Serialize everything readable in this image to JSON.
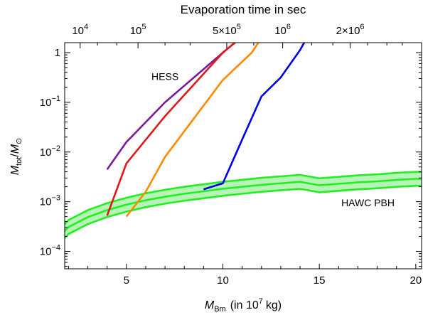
{
  "chart_data": {
    "type": "line",
    "title": "Evaporation time in sec",
    "xlabel": {
      "main": "M",
      "sub": "Bm",
      "text": "(in 10",
      "sup": "7",
      "unit": "kg)"
    },
    "ylabel": {
      "main": "M",
      "sub": "tot",
      "slash": "/",
      "den": "M",
      "den_sub": "⊙"
    },
    "xlim": [
      1.8,
      20.3
    ],
    "ylim_log10": [
      -4.35,
      0.2
    ],
    "y_scale": "log",
    "grid": false,
    "x_ticks": [
      {
        "value": 5,
        "label": "5"
      },
      {
        "value": 10,
        "label": "10"
      },
      {
        "value": 15,
        "label": "15"
      },
      {
        "value": 20,
        "label": "20"
      }
    ],
    "y_ticks": [
      {
        "log": 0,
        "base": "1",
        "exp": ""
      },
      {
        "log": -1,
        "base": "10",
        "exp": "−1"
      },
      {
        "log": -2,
        "base": "10",
        "exp": "−2"
      },
      {
        "log": -3,
        "base": "10",
        "exp": "−3"
      },
      {
        "log": -4,
        "base": "10",
        "exp": "−4"
      }
    ],
    "top_ticks": [
      {
        "x": 2.6,
        "base": "10",
        "exp": "4",
        "mant": ""
      },
      {
        "x": 5.6,
        "base": "10",
        "exp": "5",
        "mant": ""
      },
      {
        "x": 10.2,
        "base": "10",
        "exp": "5",
        "mant": "5×"
      },
      {
        "x": 13.1,
        "base": "10",
        "exp": "6",
        "mant": ""
      },
      {
        "x": 16.6,
        "base": "10",
        "exp": "6",
        "mant": "2×"
      }
    ],
    "annotations": [
      {
        "text": "HESS",
        "x": 7.0,
        "y_log": -0.48
      },
      {
        "text": "HAWC PBH",
        "x": 18.9,
        "y_log": -3.02
      }
    ],
    "series": [
      {
        "color": "#7a1a9a",
        "x": [
          4.0,
          5.0,
          7.0,
          10.0,
          12.5,
          13.2
        ],
        "y_log": [
          -2.35,
          -1.8,
          -1.0,
          0.0,
          0.8,
          1.0
        ]
      },
      {
        "color": "#e01818",
        "x": [
          4.0,
          5.0,
          7.0,
          10.0,
          12.0,
          13.2
        ],
        "y_log": [
          -3.28,
          -2.23,
          -1.28,
          0.0,
          0.65,
          1.0
        ]
      },
      {
        "color": "#ff8a00",
        "x": [
          5.0,
          6.0,
          7.0,
          10.0,
          11.5,
          13.2
        ],
        "y_log": [
          -3.3,
          -2.8,
          -2.1,
          -0.55,
          0.0,
          1.0
        ]
      },
      {
        "color": "#0000e8",
        "x": [
          9.0,
          10.0,
          11.0,
          12.0,
          13.0,
          14.0,
          14.5
        ],
        "y_log": [
          -2.75,
          -2.63,
          -1.75,
          -0.88,
          -0.5,
          0.05,
          0.4
        ]
      }
    ],
    "band": {
      "name": "HAWC PBH",
      "fill": "#b6f5b6",
      "line_color": "#22ee22",
      "x": [
        1.8,
        2,
        3,
        4,
        5,
        6,
        7,
        8,
        9,
        10,
        11,
        12,
        13,
        14,
        15,
        16,
        17,
        18,
        19,
        20,
        20.3
      ],
      "upper_log": [
        -3.45,
        -3.37,
        -3.17,
        -3.03,
        -2.92,
        -2.83,
        -2.76,
        -2.7,
        -2.65,
        -2.6,
        -2.56,
        -2.52,
        -2.49,
        -2.46,
        -2.53,
        -2.5,
        -2.47,
        -2.45,
        -2.42,
        -2.4,
        -2.4
      ],
      "middle_log": [
        -3.59,
        -3.51,
        -3.31,
        -3.17,
        -3.06,
        -2.97,
        -2.9,
        -2.84,
        -2.79,
        -2.74,
        -2.7,
        -2.66,
        -2.63,
        -2.6,
        -2.67,
        -2.64,
        -2.61,
        -2.59,
        -2.56,
        -2.54,
        -2.54
      ],
      "lower_log": [
        -3.73,
        -3.65,
        -3.45,
        -3.31,
        -3.2,
        -3.11,
        -3.04,
        -2.98,
        -2.93,
        -2.88,
        -2.84,
        -2.8,
        -2.77,
        -2.74,
        -2.81,
        -2.78,
        -2.75,
        -2.73,
        -2.7,
        -2.68,
        -2.68
      ]
    }
  }
}
